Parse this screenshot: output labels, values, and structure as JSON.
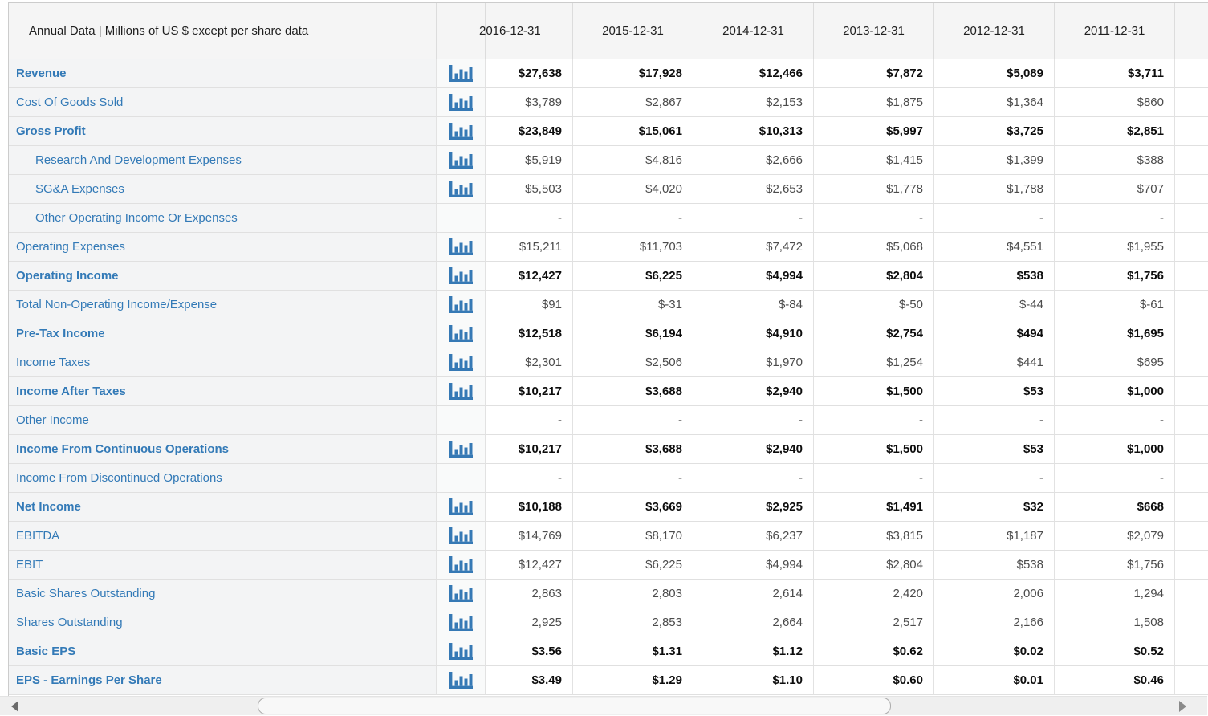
{
  "header": {
    "title": "Annual Data | Millions of US $ except per share data"
  },
  "columns": [
    "2016-12-31",
    "2015-12-31",
    "2014-12-31",
    "2013-12-31",
    "2012-12-31",
    "2011-12-31"
  ],
  "rows": [
    {
      "label": "Revenue",
      "bold": true,
      "indent": false,
      "icon": true,
      "values": [
        "$27,638",
        "$17,928",
        "$12,466",
        "$7,872",
        "$5,089",
        "$3,711"
      ]
    },
    {
      "label": "Cost Of Goods Sold",
      "bold": false,
      "indent": false,
      "icon": true,
      "values": [
        "$3,789",
        "$2,867",
        "$2,153",
        "$1,875",
        "$1,364",
        "$860"
      ]
    },
    {
      "label": "Gross Profit",
      "bold": true,
      "indent": false,
      "icon": true,
      "values": [
        "$23,849",
        "$15,061",
        "$10,313",
        "$5,997",
        "$3,725",
        "$2,851"
      ]
    },
    {
      "label": "Research And Development Expenses",
      "bold": false,
      "indent": true,
      "icon": true,
      "values": [
        "$5,919",
        "$4,816",
        "$2,666",
        "$1,415",
        "$1,399",
        "$388"
      ]
    },
    {
      "label": "SG&A Expenses",
      "bold": false,
      "indent": true,
      "icon": true,
      "values": [
        "$5,503",
        "$4,020",
        "$2,653",
        "$1,778",
        "$1,788",
        "$707"
      ]
    },
    {
      "label": "Other Operating Income Or Expenses",
      "bold": false,
      "indent": true,
      "icon": false,
      "values": [
        "-",
        "-",
        "-",
        "-",
        "-",
        "-"
      ]
    },
    {
      "label": "Operating Expenses",
      "bold": false,
      "indent": false,
      "icon": true,
      "values": [
        "$15,211",
        "$11,703",
        "$7,472",
        "$5,068",
        "$4,551",
        "$1,955"
      ]
    },
    {
      "label": "Operating Income",
      "bold": true,
      "indent": false,
      "icon": true,
      "values": [
        "$12,427",
        "$6,225",
        "$4,994",
        "$2,804",
        "$538",
        "$1,756"
      ]
    },
    {
      "label": "Total Non-Operating Income/Expense",
      "bold": false,
      "indent": false,
      "icon": true,
      "values": [
        "$91",
        "$-31",
        "$-84",
        "$-50",
        "$-44",
        "$-61"
      ]
    },
    {
      "label": "Pre-Tax Income",
      "bold": true,
      "indent": false,
      "icon": true,
      "values": [
        "$12,518",
        "$6,194",
        "$4,910",
        "$2,754",
        "$494",
        "$1,695"
      ]
    },
    {
      "label": "Income Taxes",
      "bold": false,
      "indent": false,
      "icon": true,
      "values": [
        "$2,301",
        "$2,506",
        "$1,970",
        "$1,254",
        "$441",
        "$695"
      ]
    },
    {
      "label": "Income After Taxes",
      "bold": true,
      "indent": false,
      "icon": true,
      "values": [
        "$10,217",
        "$3,688",
        "$2,940",
        "$1,500",
        "$53",
        "$1,000"
      ]
    },
    {
      "label": "Other Income",
      "bold": false,
      "indent": false,
      "icon": false,
      "values": [
        "-",
        "-",
        "-",
        "-",
        "-",
        "-"
      ]
    },
    {
      "label": "Income From Continuous Operations",
      "bold": true,
      "indent": false,
      "icon": true,
      "values": [
        "$10,217",
        "$3,688",
        "$2,940",
        "$1,500",
        "$53",
        "$1,000"
      ]
    },
    {
      "label": "Income From Discontinued Operations",
      "bold": false,
      "indent": false,
      "icon": false,
      "values": [
        "-",
        "-",
        "-",
        "-",
        "-",
        "-"
      ]
    },
    {
      "label": "Net Income",
      "bold": true,
      "indent": false,
      "icon": true,
      "values": [
        "$10,188",
        "$3,669",
        "$2,925",
        "$1,491",
        "$32",
        "$668"
      ]
    },
    {
      "label": "EBITDA",
      "bold": false,
      "indent": false,
      "icon": true,
      "values": [
        "$14,769",
        "$8,170",
        "$6,237",
        "$3,815",
        "$1,187",
        "$2,079"
      ]
    },
    {
      "label": "EBIT",
      "bold": false,
      "indent": false,
      "icon": true,
      "values": [
        "$12,427",
        "$6,225",
        "$4,994",
        "$2,804",
        "$538",
        "$1,756"
      ]
    },
    {
      "label": "Basic Shares Outstanding",
      "bold": false,
      "indent": false,
      "icon": true,
      "values": [
        "2,863",
        "2,803",
        "2,614",
        "2,420",
        "2,006",
        "1,294"
      ]
    },
    {
      "label": "Shares Outstanding",
      "bold": false,
      "indent": false,
      "icon": true,
      "values": [
        "2,925",
        "2,853",
        "2,664",
        "2,517",
        "2,166",
        "1,508"
      ]
    },
    {
      "label": "Basic EPS",
      "bold": true,
      "indent": false,
      "icon": true,
      "values": [
        "$3.56",
        "$1.31",
        "$1.12",
        "$0.62",
        "$0.02",
        "$0.52"
      ]
    },
    {
      "label": "EPS - Earnings Per Share",
      "bold": true,
      "indent": false,
      "icon": true,
      "values": [
        "$3.49",
        "$1.29",
        "$1.10",
        "$0.60",
        "$0.01",
        "$0.46"
      ]
    }
  ],
  "icons": {
    "row_chart": "bar-chart-icon",
    "scroll_left": "left-arrow-icon",
    "scroll_right": "right-arrow-icon"
  },
  "colors": {
    "link_blue": "#337ab7",
    "icon_blue": "#3679b5",
    "header_bg": "#f5f5f5",
    "pinned_col_bg": "#f3f4f5",
    "grid_line": "#e0e0e0",
    "bold_value": "#0d0d0d",
    "regular_value": "#4c4c4c"
  }
}
